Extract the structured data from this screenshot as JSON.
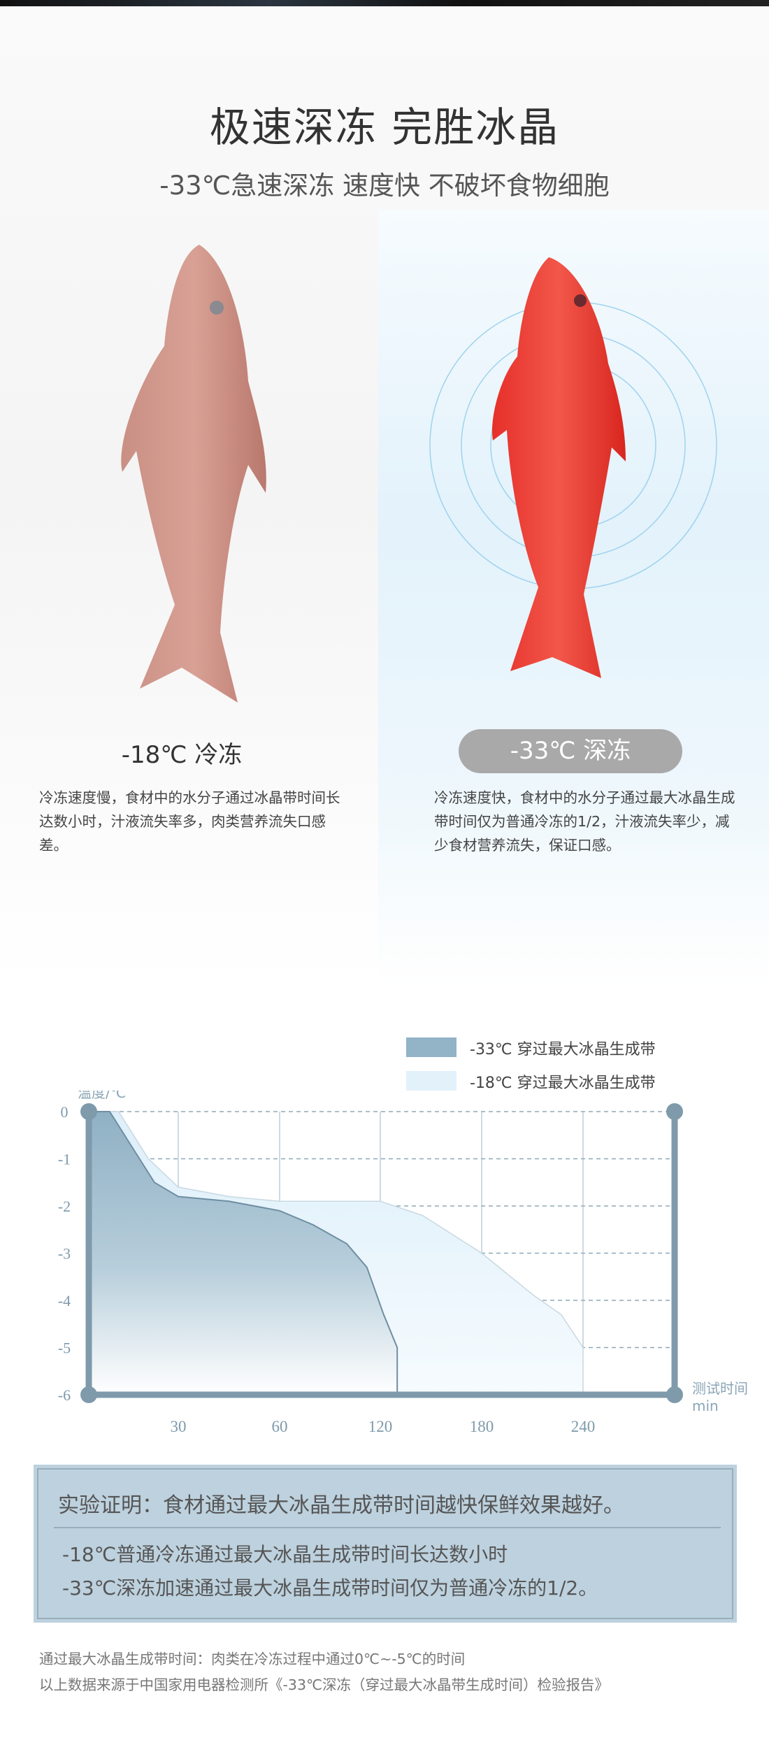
{
  "header": {
    "title": "极速深冻 完胜冰晶",
    "subtitle": "-33℃急速深冻 速度快 不破坏食物细胞"
  },
  "compare": {
    "left": {
      "label": "-18℃ 冷冻",
      "desc": "冷冻速度慢，食材中的水分子通过冰晶带时间长达数小时，汁液流失率多，肉类营养流失口感差。"
    },
    "right": {
      "label": "-33℃ 深冻",
      "desc": "冷冻速度快，食材中的水分子通过最大冰晶生成带时间仅为普通冷冻的1/2，汁液流失率少，减少食材营养流失，保证口感。"
    }
  },
  "colors": {
    "deep": "#93b3c7",
    "normal": "#e3f1fb",
    "axis": "#7e9aab",
    "pill": "#a9a9aa",
    "box": "#bdd1de"
  },
  "chart_data": {
    "type": "area",
    "ylabel": "温度/℃",
    "xlabel": "测试时间",
    "xunit": "min",
    "xticks": [
      30,
      60,
      120,
      180,
      240
    ],
    "yticks": [
      0,
      -1,
      -2,
      -3,
      -4,
      -5,
      -6
    ],
    "ylim": [
      -6,
      0
    ],
    "grid": true,
    "legend_placement": "top-right",
    "series": [
      {
        "name": "-33℃ 穿过最大冰晶生成带",
        "color": "#93b3c7",
        "points": [
          [
            0,
            0
          ],
          [
            7,
            0
          ],
          [
            15,
            -0.8
          ],
          [
            22,
            -1.5
          ],
          [
            30,
            -1.8
          ],
          [
            45,
            -1.9
          ],
          [
            60,
            -2.1
          ],
          [
            80,
            -2.4
          ],
          [
            100,
            -2.8
          ],
          [
            112,
            -3.3
          ],
          [
            122,
            -4.3
          ],
          [
            130,
            -5
          ]
        ]
      },
      {
        "name": "-18℃ 穿过最大冰晶生成带",
        "color": "#e3f1fb",
        "points": [
          [
            0,
            0
          ],
          [
            10,
            0
          ],
          [
            20,
            -1
          ],
          [
            30,
            -1.6
          ],
          [
            45,
            -1.8
          ],
          [
            60,
            -1.9
          ],
          [
            120,
            -1.9
          ],
          [
            145,
            -2.2
          ],
          [
            180,
            -3
          ],
          [
            211,
            -3.9
          ],
          [
            227,
            -4.3
          ],
          [
            240,
            -5
          ]
        ]
      }
    ]
  },
  "conclusion": {
    "headline": "实验证明：食材通过最大冰晶生成带时间越快保鲜效果越好。",
    "lines": [
      "-18℃普通冷冻通过最大冰晶生成带时间长达数小时",
      "-33℃深冻加速通过最大冰晶生成带时间仅为普通冷冻的1/2。"
    ]
  },
  "footnotes": [
    "通过最大冰晶生成带时间：肉类在冷冻过程中通过0℃~-5℃的时间",
    "以上数据来源于中国家用电器检测所《-33℃深冻（穿过最大冰晶带生成时间）检验报告》"
  ]
}
